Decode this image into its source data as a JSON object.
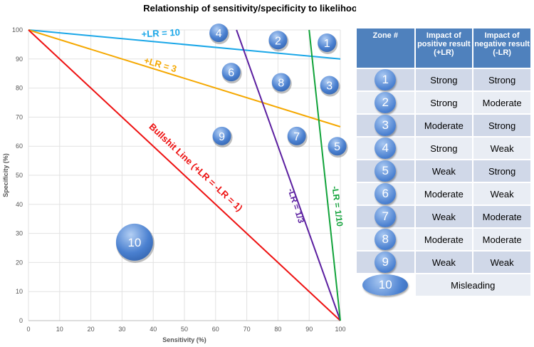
{
  "chart_data": {
    "type": "line",
    "title": "Relationship of sensitivity/specificity to likelihood ratios",
    "xlabel": "Sensitivity (%)",
    "ylabel": "Specificity (%)",
    "xlim": [
      0,
      100
    ],
    "ylim": [
      0,
      100
    ],
    "xticks": [
      0,
      10,
      20,
      30,
      40,
      50,
      60,
      70,
      80,
      90,
      100
    ],
    "yticks": [
      0,
      10,
      20,
      30,
      40,
      50,
      60,
      70,
      80,
      90,
      100
    ],
    "grid": true,
    "series": [
      {
        "name": "+LR = 10",
        "color": "#1aa7e8",
        "x": [
          0,
          100
        ],
        "y": [
          100,
          90
        ]
      },
      {
        "name": "+LR = 3",
        "color": "#f5a800",
        "x": [
          0,
          100
        ],
        "y": [
          100,
          66.7
        ]
      },
      {
        "name": "Bullshit Line (+LR = -LR = 1)",
        "color": "#ee1111",
        "x": [
          0,
          100
        ],
        "y": [
          100,
          0
        ]
      },
      {
        "name": "-LR = 1/3",
        "color": "#5b1fa0",
        "x": [
          66.7,
          100
        ],
        "y": [
          100,
          0
        ]
      },
      {
        "name": "-LR = 1/10",
        "color": "#11a33a",
        "x": [
          90,
          100
        ],
        "y": [
          100,
          0
        ]
      }
    ],
    "zones": [
      {
        "label": "1",
        "x": 95.7,
        "y": 95.6
      },
      {
        "label": "2",
        "x": 80,
        "y": 96.5
      },
      {
        "label": "3",
        "x": 96.5,
        "y": 81
      },
      {
        "label": "4",
        "x": 61,
        "y": 99
      },
      {
        "label": "5",
        "x": 99,
        "y": 60
      },
      {
        "label": "6",
        "x": 65,
        "y": 85.5
      },
      {
        "label": "7",
        "x": 86,
        "y": 63.5
      },
      {
        "label": "8",
        "x": 81,
        "y": 82
      },
      {
        "label": "9",
        "x": 62,
        "y": 63.5
      },
      {
        "label": "10",
        "x": 34,
        "y": 27
      }
    ]
  },
  "table": {
    "headers": [
      "Zone #",
      "Impact of positive result (+LR)",
      "Impact of negative result (-LR)"
    ],
    "rows": [
      {
        "zone": "1",
        "pos": "Strong",
        "neg": "Strong"
      },
      {
        "zone": "2",
        "pos": "Strong",
        "neg": "Moderate"
      },
      {
        "zone": "3",
        "pos": "Moderate",
        "neg": "Strong"
      },
      {
        "zone": "4",
        "pos": "Strong",
        "neg": "Weak"
      },
      {
        "zone": "5",
        "pos": "Weak",
        "neg": "Strong"
      },
      {
        "zone": "6",
        "pos": "Moderate",
        "neg": "Weak"
      },
      {
        "zone": "7",
        "pos": "Weak",
        "neg": "Moderate"
      },
      {
        "zone": "8",
        "pos": "Moderate",
        "neg": "Moderate"
      },
      {
        "zone": "9",
        "pos": "Weak",
        "neg": "Weak"
      }
    ],
    "last": {
      "zone": "10",
      "text": "Misleading"
    }
  }
}
